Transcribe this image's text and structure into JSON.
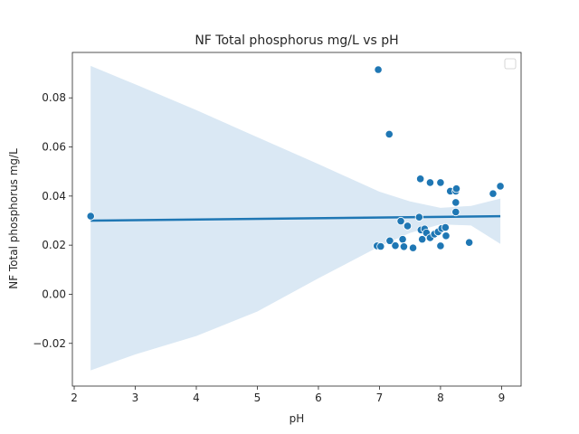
{
  "chart_data": {
    "type": "scatter",
    "title": "NF Total phosphorus mg/L vs pH",
    "xlabel": "pH",
    "ylabel": "NF Total phosphorus mg/L",
    "xlim": [
      1.97,
      9.32
    ],
    "ylim": [
      -0.0374,
      0.0985
    ],
    "xticks": [
      2,
      3,
      4,
      5,
      6,
      7,
      8,
      9
    ],
    "yticks": [
      -0.02,
      0.0,
      0.02,
      0.04,
      0.06,
      0.08
    ],
    "ytick_labels": [
      "−0.02",
      "0.00",
      "0.02",
      "0.04",
      "0.06",
      "0.08"
    ],
    "grid": false,
    "legend": {
      "placement": "top-right",
      "entries": []
    },
    "colors": {
      "points": "#1f77b4",
      "line": "#1f77b4",
      "band": "#dae8f4",
      "axes": "#262626"
    },
    "points": [
      {
        "x": 2.27,
        "y": 0.0318
      },
      {
        "x": 6.98,
        "y": 0.0915
      },
      {
        "x": 7.16,
        "y": 0.0652
      },
      {
        "x": 6.96,
        "y": 0.0197
      },
      {
        "x": 7.02,
        "y": 0.0195
      },
      {
        "x": 7.17,
        "y": 0.0218
      },
      {
        "x": 7.26,
        "y": 0.0198
      },
      {
        "x": 7.35,
        "y": 0.0298
      },
      {
        "x": 7.38,
        "y": 0.0224
      },
      {
        "x": 7.4,
        "y": 0.0194
      },
      {
        "x": 7.46,
        "y": 0.0278
      },
      {
        "x": 7.55,
        "y": 0.0189
      },
      {
        "x": 7.65,
        "y": 0.0314
      },
      {
        "x": 7.67,
        "y": 0.047
      },
      {
        "x": 7.68,
        "y": 0.0262
      },
      {
        "x": 7.7,
        "y": 0.0224
      },
      {
        "x": 7.74,
        "y": 0.0266
      },
      {
        "x": 7.77,
        "y": 0.025
      },
      {
        "x": 7.83,
        "y": 0.0455
      },
      {
        "x": 7.83,
        "y": 0.023
      },
      {
        "x": 7.9,
        "y": 0.0245
      },
      {
        "x": 7.96,
        "y": 0.0254
      },
      {
        "x": 8.0,
        "y": 0.0455
      },
      {
        "x": 8.0,
        "y": 0.0197
      },
      {
        "x": 8.02,
        "y": 0.0268
      },
      {
        "x": 8.08,
        "y": 0.0272
      },
      {
        "x": 8.09,
        "y": 0.0238
      },
      {
        "x": 8.16,
        "y": 0.042
      },
      {
        "x": 8.25,
        "y": 0.042
      },
      {
        "x": 8.26,
        "y": 0.043
      },
      {
        "x": 8.25,
        "y": 0.0374
      },
      {
        "x": 8.25,
        "y": 0.0335
      },
      {
        "x": 8.47,
        "y": 0.0211
      },
      {
        "x": 8.86,
        "y": 0.041
      },
      {
        "x": 8.98,
        "y": 0.044
      }
    ],
    "regression": {
      "x": [
        2.27,
        8.98
      ],
      "y": [
        0.03,
        0.0318
      ]
    },
    "confidence_band": {
      "x": [
        2.27,
        3.0,
        4.0,
        5.0,
        6.0,
        7.0,
        7.5,
        8.0,
        8.5,
        8.98
      ],
      "upper": [
        0.093,
        0.0855,
        0.075,
        0.064,
        0.053,
        0.0418,
        0.0378,
        0.0352,
        0.036,
        0.039
      ],
      "lower": [
        -0.031,
        -0.0245,
        -0.017,
        -0.007,
        0.0065,
        0.0195,
        0.025,
        0.0285,
        0.028,
        0.0205
      ]
    }
  }
}
